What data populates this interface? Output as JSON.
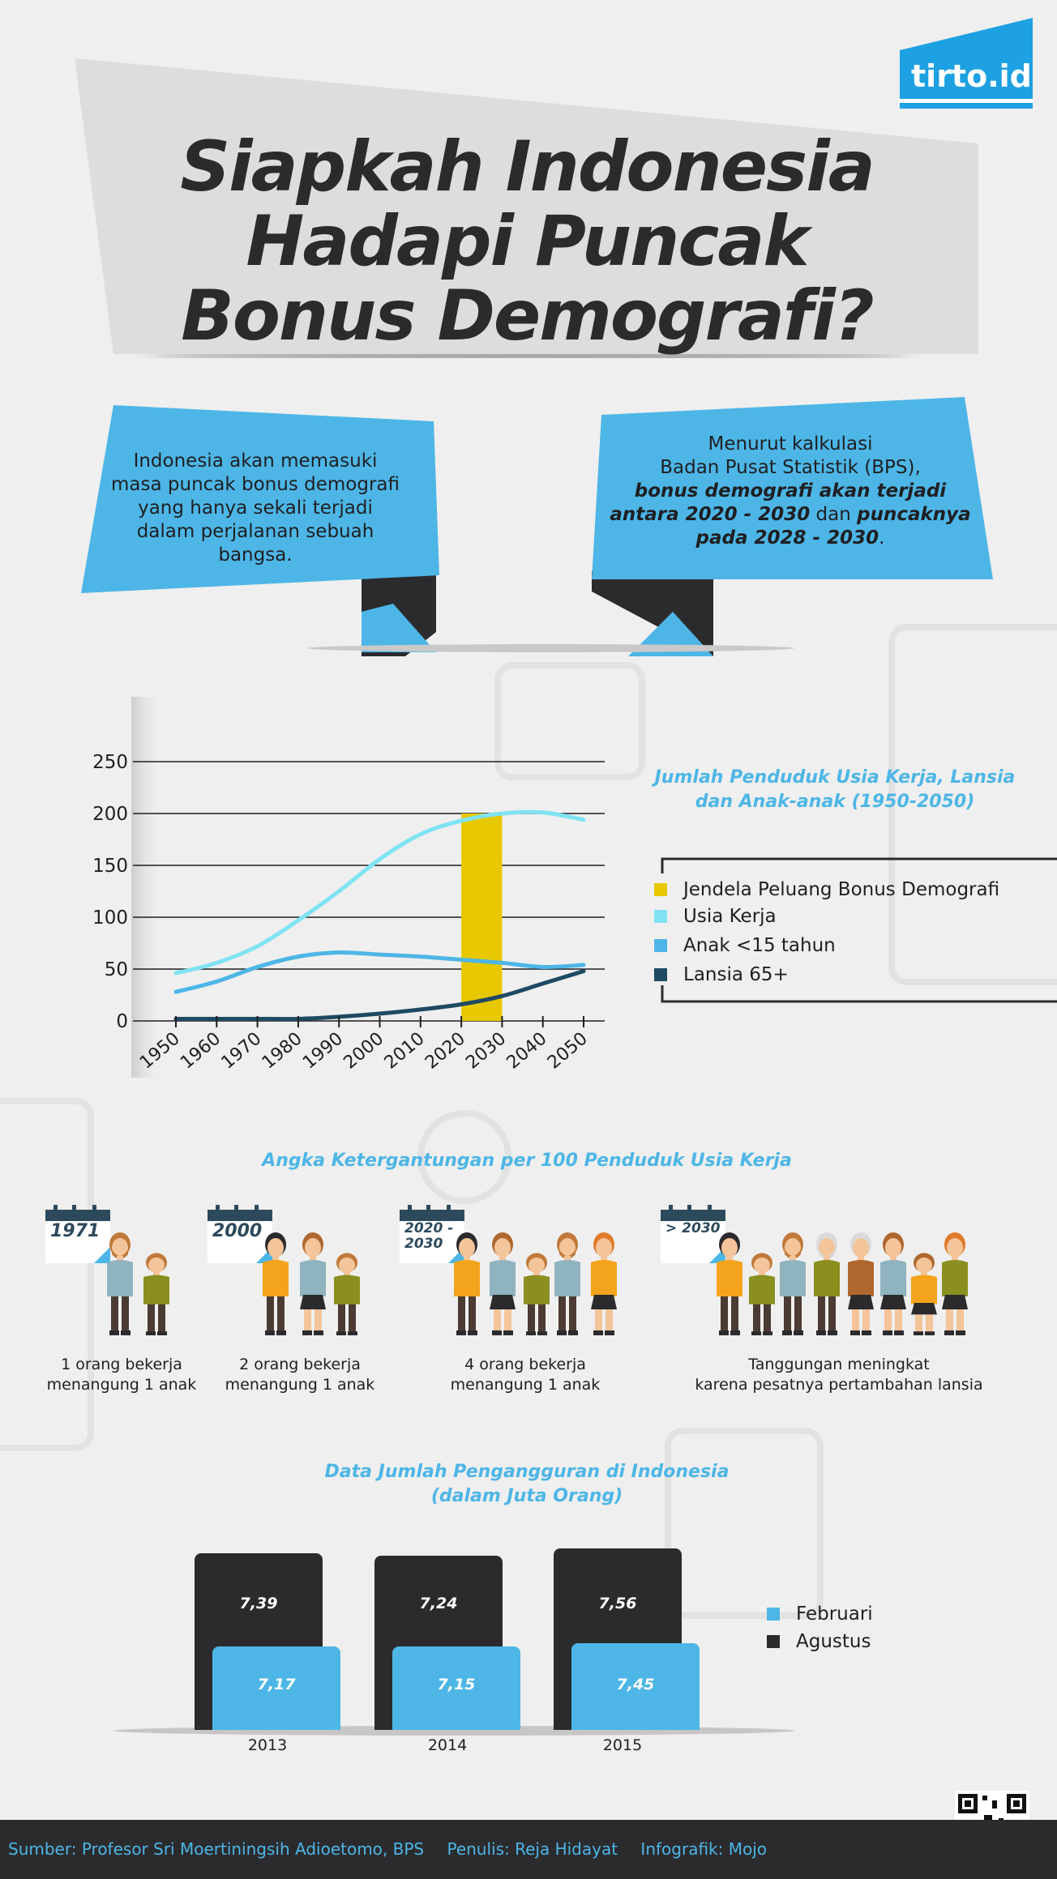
{
  "logo": {
    "text": "tirto.id"
  },
  "title": {
    "line1": "Siapkah Indonesia",
    "line2": "Hadapi Puncak",
    "line3": "Bonus Demografi?"
  },
  "callout_left": {
    "text": "Indonesia akan memasuki masa puncak bonus demografi yang hanya sekali terjadi dalam perjalanan sebuah bangsa."
  },
  "callout_right": {
    "line1": "Menurut kalkulasi",
    "line2": "Badan Pusat Statistik (BPS),",
    "bold1": "bonus demografi akan terjadi antara 2020 - 2030",
    "mid": " dan ",
    "bold2": "puncaknya pada 2028 - 2030",
    "end": "."
  },
  "chart_data": {
    "type": "line",
    "title": "Jumlah Penduduk Usia Kerja, Lansia dan Anak-anak (1950-2050)",
    "x": [
      1950,
      1960,
      1970,
      1980,
      1990,
      2000,
      2010,
      2020,
      2030,
      2040,
      2050
    ],
    "x_ticks": [
      "1950",
      "1960",
      "1970",
      "1980",
      "1990",
      "2000",
      "2010",
      "2020",
      "2030",
      "2040",
      "2050"
    ],
    "y_ticks": [
      "0",
      "50",
      "100",
      "150",
      "200",
      "250"
    ],
    "ylim": [
      0,
      250
    ],
    "grid": true,
    "legend_position": "right",
    "highlight": {
      "name": "Jendela Peluang Bonus Demografi",
      "x_start": 2020,
      "x_end": 2030,
      "color": "#e8c800"
    },
    "series": [
      {
        "name": "Usia Kerja",
        "color": "#7fe3f3",
        "values": [
          46,
          56,
          72,
          97,
          125,
          156,
          180,
          193,
          200,
          201,
          194
        ]
      },
      {
        "name": "Anak <15 tahun",
        "color": "#4db6e6",
        "values": [
          28,
          38,
          52,
          62,
          66,
          64,
          62,
          59,
          56,
          52,
          54
        ]
      },
      {
        "name": "Lansia 65+",
        "color": "#1e4a63",
        "values": [
          2,
          2,
          2,
          2,
          4,
          7,
          11,
          16,
          24,
          36,
          48
        ]
      }
    ]
  },
  "dependency": {
    "title": "Angka Ketergantungan per 100 Penduduk Usia Kerja",
    "items": [
      {
        "year": "1971",
        "caption1": "1 orang bekerja",
        "caption2": "menangung 1 anak"
      },
      {
        "year": "2000",
        "caption1": "2 orang bekerja",
        "caption2": "menangung 1 anak"
      },
      {
        "year": "2020 - 2030",
        "caption1": "4 orang bekerja",
        "caption2": "menangung 1 anak"
      },
      {
        "year": "> 2030",
        "caption1": "Tanggungan meningkat",
        "caption2": "karena pesatnya pertambahan lansia"
      }
    ]
  },
  "unemployment": {
    "title_line1": "Data Jumlah Pengangguran di Indonesia",
    "title_line2": "(dalam Juta Orang)",
    "legend": {
      "feb": "Februari",
      "aug": "Agustus"
    },
    "colors": {
      "feb": "#4db6e6",
      "aug": "#2b2b2e"
    },
    "years": [
      {
        "year": "2013",
        "aug": "7,39",
        "feb": "7,17"
      },
      {
        "year": "2014",
        "aug": "7,24",
        "feb": "7,15"
      },
      {
        "year": "2015",
        "aug": "7,56",
        "feb": "7,45"
      }
    ]
  },
  "footer": {
    "source": "Sumber: Profesor Sri Moertiningsih Adioetomo, BPS",
    "writer": "Penulis: Reja Hidayat",
    "infographic": "Infografik: Mojo"
  },
  "colors": {
    "accent": "#4db6e6",
    "dark": "#2b2b2e",
    "highlight": "#e8c800",
    "background": "#efefef"
  }
}
